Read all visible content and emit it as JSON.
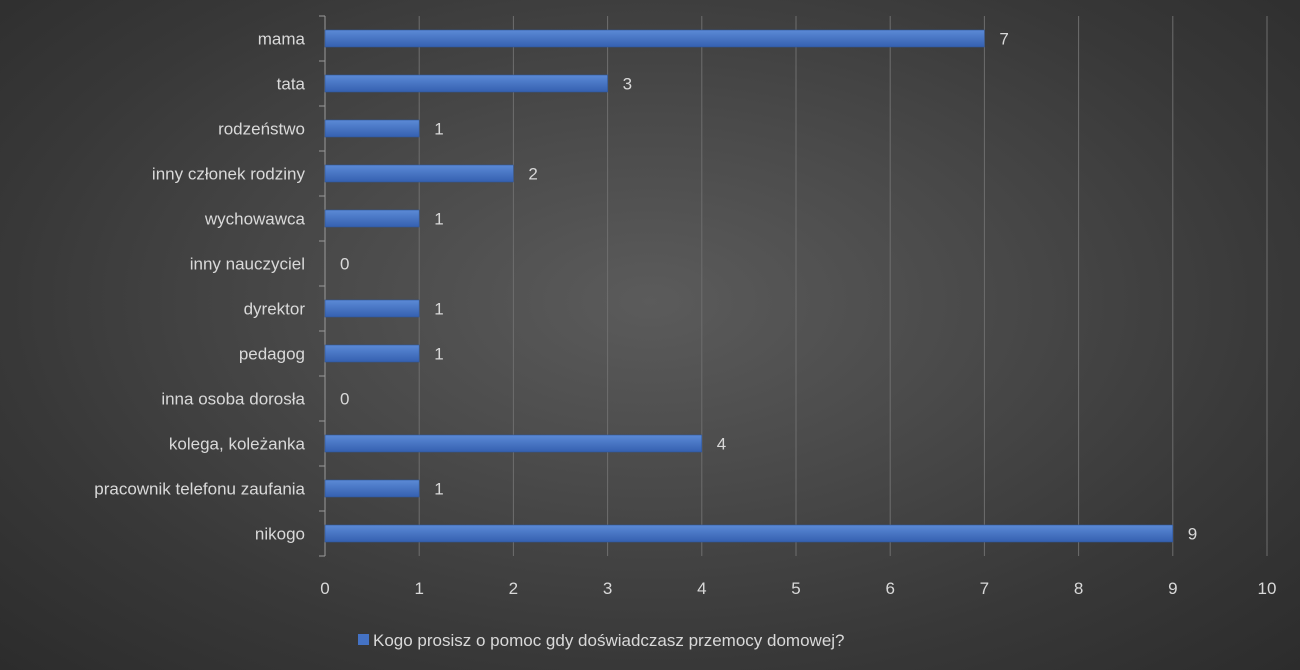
{
  "chart_data": {
    "type": "bar",
    "orientation": "horizontal",
    "title": "",
    "xlabel": "",
    "ylabel": "",
    "categories": [
      "mama",
      "tata",
      "rodzeństwo",
      "inny członek rodziny",
      "wychowawca",
      "inny nauczyciel",
      "dyrektor",
      "pedagog",
      "inna osoba dorosła",
      "kolega, koleżanka",
      "pracownik telefonu zaufania",
      "nikogo"
    ],
    "series": [
      {
        "name": "Kogo prosisz o pomoc gdy doświadczasz przemocy domowej?",
        "values": [
          7,
          3,
          1,
          2,
          1,
          0,
          1,
          1,
          0,
          4,
          1,
          9
        ],
        "color": "#4472c4"
      }
    ],
    "xlim": [
      0,
      10
    ],
    "xticks": [
      "0",
      "1",
      "2",
      "3",
      "4",
      "5",
      "6",
      "7",
      "8",
      "9",
      "10"
    ],
    "grid": true,
    "data_labels": true,
    "legend_position": "bottom"
  }
}
